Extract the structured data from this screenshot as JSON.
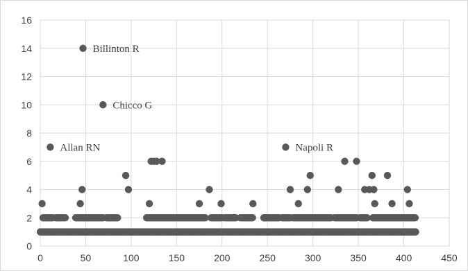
{
  "chart_data": {
    "type": "scatter",
    "title": "",
    "xlabel": "",
    "ylabel": "",
    "xlim": [
      0,
      450
    ],
    "ylim": [
      0,
      16
    ],
    "xticks": [
      0,
      50,
      100,
      150,
      200,
      250,
      300,
      350,
      400,
      450
    ],
    "yticks": [
      0,
      2,
      4,
      6,
      8,
      10,
      12,
      14,
      16
    ],
    "grid": true,
    "legend": "none",
    "marker_color": "#595959",
    "grid_color": "#d9d9d9",
    "annotations": [
      {
        "text": "Billinton R",
        "x": 47,
        "y": 14
      },
      {
        "text": "Chicco G",
        "x": 69,
        "y": 10
      },
      {
        "text": "Allan RN",
        "x": 11,
        "y": 7
      },
      {
        "text": "Napoli R",
        "x": 270,
        "y": 7
      }
    ],
    "series": [
      {
        "baseline_y1": {
          "x_from": 0,
          "x_to": 413,
          "y": 1
        },
        "baseline_y2_segments": [
          [
            3,
            14
          ],
          [
            17,
            28
          ],
          [
            39,
            70
          ],
          [
            73,
            85
          ],
          [
            117,
            182
          ],
          [
            188,
            200
          ],
          [
            203,
            216
          ],
          [
            220,
            234
          ],
          [
            246,
            263
          ],
          [
            266,
            276
          ],
          [
            278,
            320
          ],
          [
            324,
            349
          ],
          [
            352,
            360
          ],
          [
            366,
            413
          ]
        ],
        "points": [
          {
            "x": 2,
            "y": 3
          },
          {
            "x": 44,
            "y": 3
          },
          {
            "x": 46,
            "y": 4
          },
          {
            "x": 47,
            "y": 14
          },
          {
            "x": 69,
            "y": 10
          },
          {
            "x": 11,
            "y": 7
          },
          {
            "x": 94,
            "y": 5
          },
          {
            "x": 97,
            "y": 4
          },
          {
            "x": 120,
            "y": 3
          },
          {
            "x": 122,
            "y": 6
          },
          {
            "x": 125,
            "y": 6
          },
          {
            "x": 128,
            "y": 6
          },
          {
            "x": 134,
            "y": 6
          },
          {
            "x": 175,
            "y": 3
          },
          {
            "x": 186,
            "y": 4
          },
          {
            "x": 199,
            "y": 3
          },
          {
            "x": 234,
            "y": 3
          },
          {
            "x": 270,
            "y": 7
          },
          {
            "x": 275,
            "y": 4
          },
          {
            "x": 284,
            "y": 3
          },
          {
            "x": 294,
            "y": 4
          },
          {
            "x": 297,
            "y": 5
          },
          {
            "x": 328,
            "y": 4
          },
          {
            "x": 335,
            "y": 6
          },
          {
            "x": 348,
            "y": 6
          },
          {
            "x": 357,
            "y": 4
          },
          {
            "x": 362,
            "y": 4
          },
          {
            "x": 365,
            "y": 5
          },
          {
            "x": 367,
            "y": 4
          },
          {
            "x": 368,
            "y": 3
          },
          {
            "x": 382,
            "y": 5
          },
          {
            "x": 387,
            "y": 3
          },
          {
            "x": 404,
            "y": 4
          },
          {
            "x": 406,
            "y": 3
          }
        ]
      }
    ]
  }
}
